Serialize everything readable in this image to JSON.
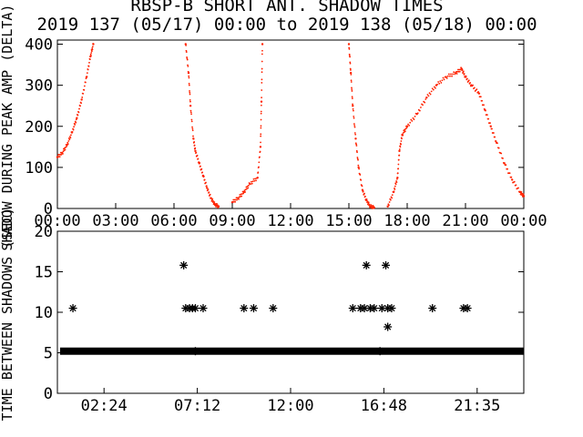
{
  "title": {
    "line1": "RBSP-B SHORT ANT. SHADOW TIMES",
    "line2": "2019 137 (05/17) 00:00 to 2019 138 (05/18) 00:00"
  },
  "colors": {
    "series_top": "#ff2200",
    "axes": "#000000",
    "series_bottom": "#000000"
  },
  "chart_data": [
    {
      "type": "scatter",
      "ylabel": "SHADOW DURING PEAK AMP (DELTA)",
      "ylim": [
        0,
        410
      ],
      "xlim": [
        0,
        24
      ],
      "x_ticks": [
        "00:00",
        "03:00",
        "06:00",
        "09:00",
        "12:00",
        "15:00",
        "18:00",
        "21:00",
        "00:00"
      ],
      "y_ticks": [
        "0",
        "100",
        "200",
        "300",
        "400"
      ],
      "grid": false,
      "series": [
        {
          "marker": "dot",
          "points": [
            [
              0.0,
              125
            ],
            [
              0.25,
              135
            ],
            [
              0.5,
              155
            ],
            [
              0.75,
              185
            ],
            [
              1.0,
              220
            ],
            [
              1.25,
              265
            ],
            [
              1.5,
              320
            ],
            [
              1.7,
              370
            ],
            [
              1.85,
              400
            ],
            [
              6.6,
              400
            ],
            [
              6.75,
              330
            ],
            [
              6.85,
              250
            ],
            [
              7.0,
              170
            ],
            [
              7.1,
              140
            ],
            [
              7.3,
              110
            ],
            [
              7.5,
              80
            ],
            [
              7.7,
              50
            ],
            [
              7.9,
              25
            ],
            [
              8.1,
              10
            ],
            [
              8.3,
              5
            ],
            [
              9.0,
              15
            ],
            [
              9.3,
              25
            ],
            [
              9.6,
              40
            ],
            [
              9.9,
              60
            ],
            [
              10.3,
              75
            ],
            [
              10.45,
              150
            ],
            [
              10.5,
              260
            ],
            [
              10.55,
              400
            ],
            [
              15.0,
              400
            ],
            [
              15.1,
              330
            ],
            [
              15.2,
              250
            ],
            [
              15.35,
              170
            ],
            [
              15.5,
              100
            ],
            [
              15.7,
              45
            ],
            [
              15.9,
              20
            ],
            [
              16.1,
              5
            ],
            [
              16.3,
              2
            ],
            [
              17.0,
              5
            ],
            [
              17.3,
              40
            ],
            [
              17.5,
              75
            ],
            [
              17.6,
              140
            ],
            [
              17.75,
              180
            ],
            [
              18.0,
              200
            ],
            [
              18.5,
              230
            ],
            [
              19.0,
              270
            ],
            [
              19.5,
              300
            ],
            [
              20.0,
              320
            ],
            [
              20.5,
              330
            ],
            [
              20.8,
              340
            ],
            [
              21.0,
              320
            ],
            [
              21.3,
              300
            ],
            [
              21.7,
              280
            ],
            [
              22.0,
              240
            ],
            [
              22.3,
              200
            ],
            [
              22.6,
              160
            ],
            [
              23.0,
              110
            ],
            [
              23.4,
              70
            ],
            [
              23.8,
              40
            ],
            [
              24.0,
              30
            ]
          ]
        }
      ]
    },
    {
      "type": "scatter",
      "ylabel": "TIME BETWEEN SHADOWS (SEC)",
      "ylim": [
        0,
        20
      ],
      "xlim": [
        0,
        24
      ],
      "x_ticks": [
        "02:24",
        "07:12",
        "12:00",
        "16:48",
        "21:35"
      ],
      "y_ticks": [
        "0",
        "5",
        "10",
        "15",
        "20"
      ],
      "grid": false,
      "series": [
        {
          "marker": "asterisk",
          "baseline_y": 5.2,
          "points": [
            [
              0.8,
              10.5
            ],
            [
              6.5,
              15.8
            ],
            [
              6.6,
              10.5
            ],
            [
              6.8,
              10.5
            ],
            [
              6.95,
              10.5
            ],
            [
              7.1,
              10.5
            ],
            [
              7.5,
              10.5
            ],
            [
              7.1,
              5.2
            ],
            [
              9.6,
              10.5
            ],
            [
              10.1,
              10.5
            ],
            [
              11.1,
              10.5
            ],
            [
              15.2,
              10.5
            ],
            [
              15.6,
              10.5
            ],
            [
              15.8,
              10.5
            ],
            [
              15.9,
              15.8
            ],
            [
              16.1,
              10.5
            ],
            [
              16.3,
              10.5
            ],
            [
              16.7,
              10.5
            ],
            [
              16.6,
              5.2
            ],
            [
              16.9,
              15.8
            ],
            [
              17.0,
              10.5
            ],
            [
              17.2,
              10.5
            ],
            [
              17.0,
              8.2
            ],
            [
              19.3,
              10.5
            ],
            [
              20.9,
              10.5
            ],
            [
              21.1,
              10.5
            ]
          ]
        }
      ]
    }
  ]
}
